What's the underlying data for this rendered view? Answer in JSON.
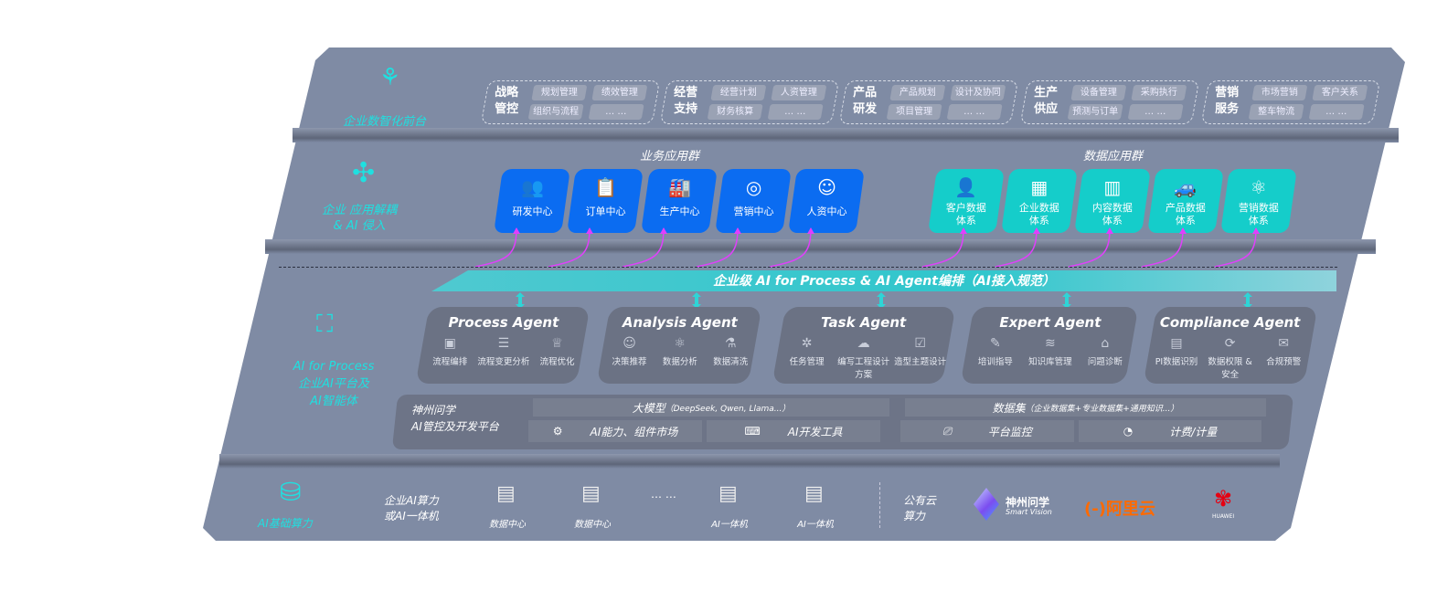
{
  "front": {
    "label": "企业数智化前台",
    "icon": "brain-icon",
    "groups": [
      {
        "title": [
          "战略",
          "管控"
        ],
        "items": [
          "规划管理",
          "绩效管理",
          "组织与流程",
          "… …"
        ]
      },
      {
        "title": [
          "经营",
          "支持"
        ],
        "items": [
          "经营计划",
          "人资管理",
          "财务核算",
          "… …"
        ]
      },
      {
        "title": [
          "产品",
          "研发"
        ],
        "items": [
          "产品规划",
          "设计及协同",
          "项目管理",
          "… …"
        ]
      },
      {
        "title": [
          "生产",
          "供应"
        ],
        "items": [
          "设备管理",
          "采购执行",
          "预测与订单",
          "… …"
        ]
      },
      {
        "title": [
          "营销",
          "服务"
        ],
        "items": [
          "市场营销",
          "客户关系",
          "整车物流",
          "… …"
        ]
      }
    ]
  },
  "apps": {
    "label": [
      "企业 应用解耦",
      "& AI 侵入"
    ],
    "icon": "molecule-icon",
    "business_title": "业务应用群",
    "data_title": "数据应用群",
    "business": [
      {
        "label": "研发中心",
        "icon": "team-icon"
      },
      {
        "label": "订单中心",
        "icon": "clipboard-icon"
      },
      {
        "label": "生产中心",
        "icon": "factory-icon"
      },
      {
        "label": "营销中心",
        "icon": "target-icon"
      },
      {
        "label": "人资中心",
        "icon": "person-icon"
      }
    ],
    "data": [
      {
        "label": [
          "客户数据",
          "体系"
        ],
        "icon": "user-icon"
      },
      {
        "label": [
          "企业数据",
          "体系"
        ],
        "icon": "building-icon"
      },
      {
        "label": [
          "内容数据",
          "体系"
        ],
        "icon": "books-icon"
      },
      {
        "label": [
          "产品数据",
          "体系"
        ],
        "icon": "car-icon"
      },
      {
        "label": [
          "营销数据",
          "体系"
        ],
        "icon": "atom-icon"
      }
    ]
  },
  "orchestration": {
    "banner": "企业级 AI for Process & AI Agent编排（AI接入规范）"
  },
  "ai_process": {
    "label": [
      "AI for Process",
      "企业AI平台及",
      "AI智能体"
    ],
    "icon": "face-scan-icon",
    "agents": [
      {
        "name": "Process Agent",
        "items": [
          "流程编排",
          "流程变更分析",
          "流程优化"
        ]
      },
      {
        "name": "Analysis Agent",
        "items": [
          "决策推荐",
          "数据分析",
          "数据清洗"
        ]
      },
      {
        "name": "Task Agent",
        "items": [
          "任务管理",
          "编写工程设计方案",
          "造型主题设计"
        ]
      },
      {
        "name": "Expert Agent",
        "items": [
          "培训指导",
          "知识库管理",
          "问题诊断"
        ]
      },
      {
        "name": "Compliance Agent",
        "items": [
          "PI数据识别",
          "数据权限 & 安全",
          "合规预警"
        ]
      }
    ],
    "platform": {
      "title": [
        "神州问学",
        "AI管控及开发平台"
      ],
      "model": "大模型",
      "model_note": "（DeepSeek, Qwen, Llama...）",
      "dataset": "数据集",
      "dataset_note": "（企业数据集+专业数据集+通用知识...）",
      "market": "AI能力、组件市场",
      "devtools": "AI开发工具",
      "monitor": "平台监控",
      "billing": "计费/计量"
    }
  },
  "infra": {
    "label": "AI基础算力",
    "icon": "database-icon",
    "enterprise": [
      "企业AI算力",
      "或AI一体机"
    ],
    "servers": [
      "数据中心",
      "数据中心",
      "AI一体机",
      "AI一体机"
    ],
    "ellipsis": "… …",
    "public": [
      "公有云",
      "算力"
    ],
    "vendors": {
      "smartvision_cn": "神州问学",
      "smartvision_en": "Smart Vision",
      "aliyun": "阿里云",
      "huawei": "HUAWEI"
    }
  },
  "colors": {
    "panel": "#7f8ba4",
    "accent_cyan": "#1fe0e0",
    "business_blue": "#0b6cf1",
    "data_teal": "#15cdca",
    "agent_bg": "#6b7284",
    "link_magenta": "#e040fb",
    "aliyun": "#ff6a00",
    "huawei": "#e60012"
  }
}
